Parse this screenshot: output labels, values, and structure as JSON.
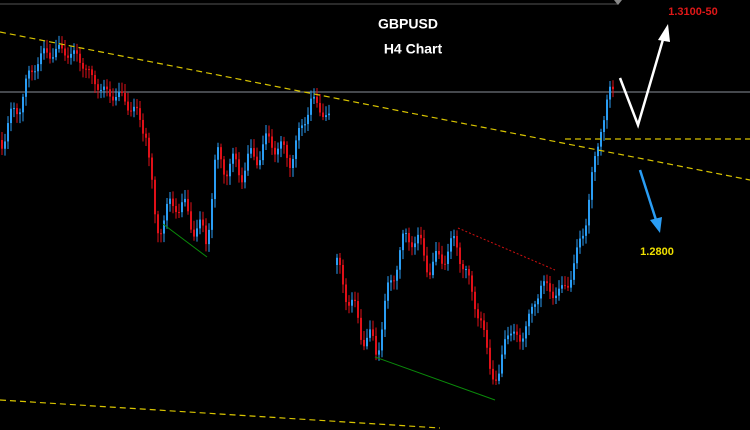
{
  "header": {
    "symbol": "GBPUSD",
    "timeframe": "H4 Chart"
  },
  "annotations": {
    "target_up": "1.3100-50",
    "target_down": "1.2800"
  }
}
